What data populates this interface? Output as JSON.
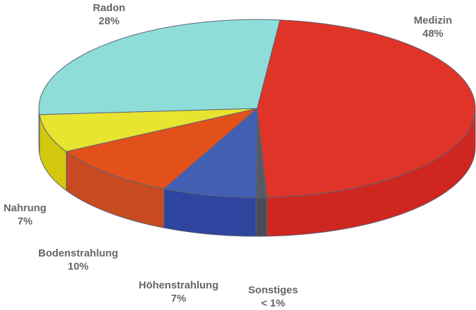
{
  "chart_data": {
    "type": "pie",
    "style": "3d",
    "slices": [
      {
        "label": "Medizin",
        "value_label": "48%",
        "value": 48,
        "color": "#DF3427",
        "side_color": "#D02620"
      },
      {
        "label": "Sonstiges",
        "value_label": "< 1%",
        "value": 0.8,
        "color": "#555A66",
        "side_color": "#4A4E58"
      },
      {
        "label": "Höhenstrahlung",
        "value_label": "7%",
        "value": 7,
        "color": "#435FB3",
        "side_color": "#2F45A0"
      },
      {
        "label": "Bodenstrahlung",
        "value_label": "10%",
        "value": 10,
        "color": "#E2511A",
        "side_color": "#C84A20"
      },
      {
        "label": "Nahrung",
        "value_label": "7%",
        "value": 7,
        "color": "#E8E430",
        "side_color": "#D4C80F"
      },
      {
        "label": "Radon",
        "value_label": "28%",
        "value": 28,
        "color": "#8FDDD8",
        "side_color": "#7CC6C2"
      }
    ]
  }
}
